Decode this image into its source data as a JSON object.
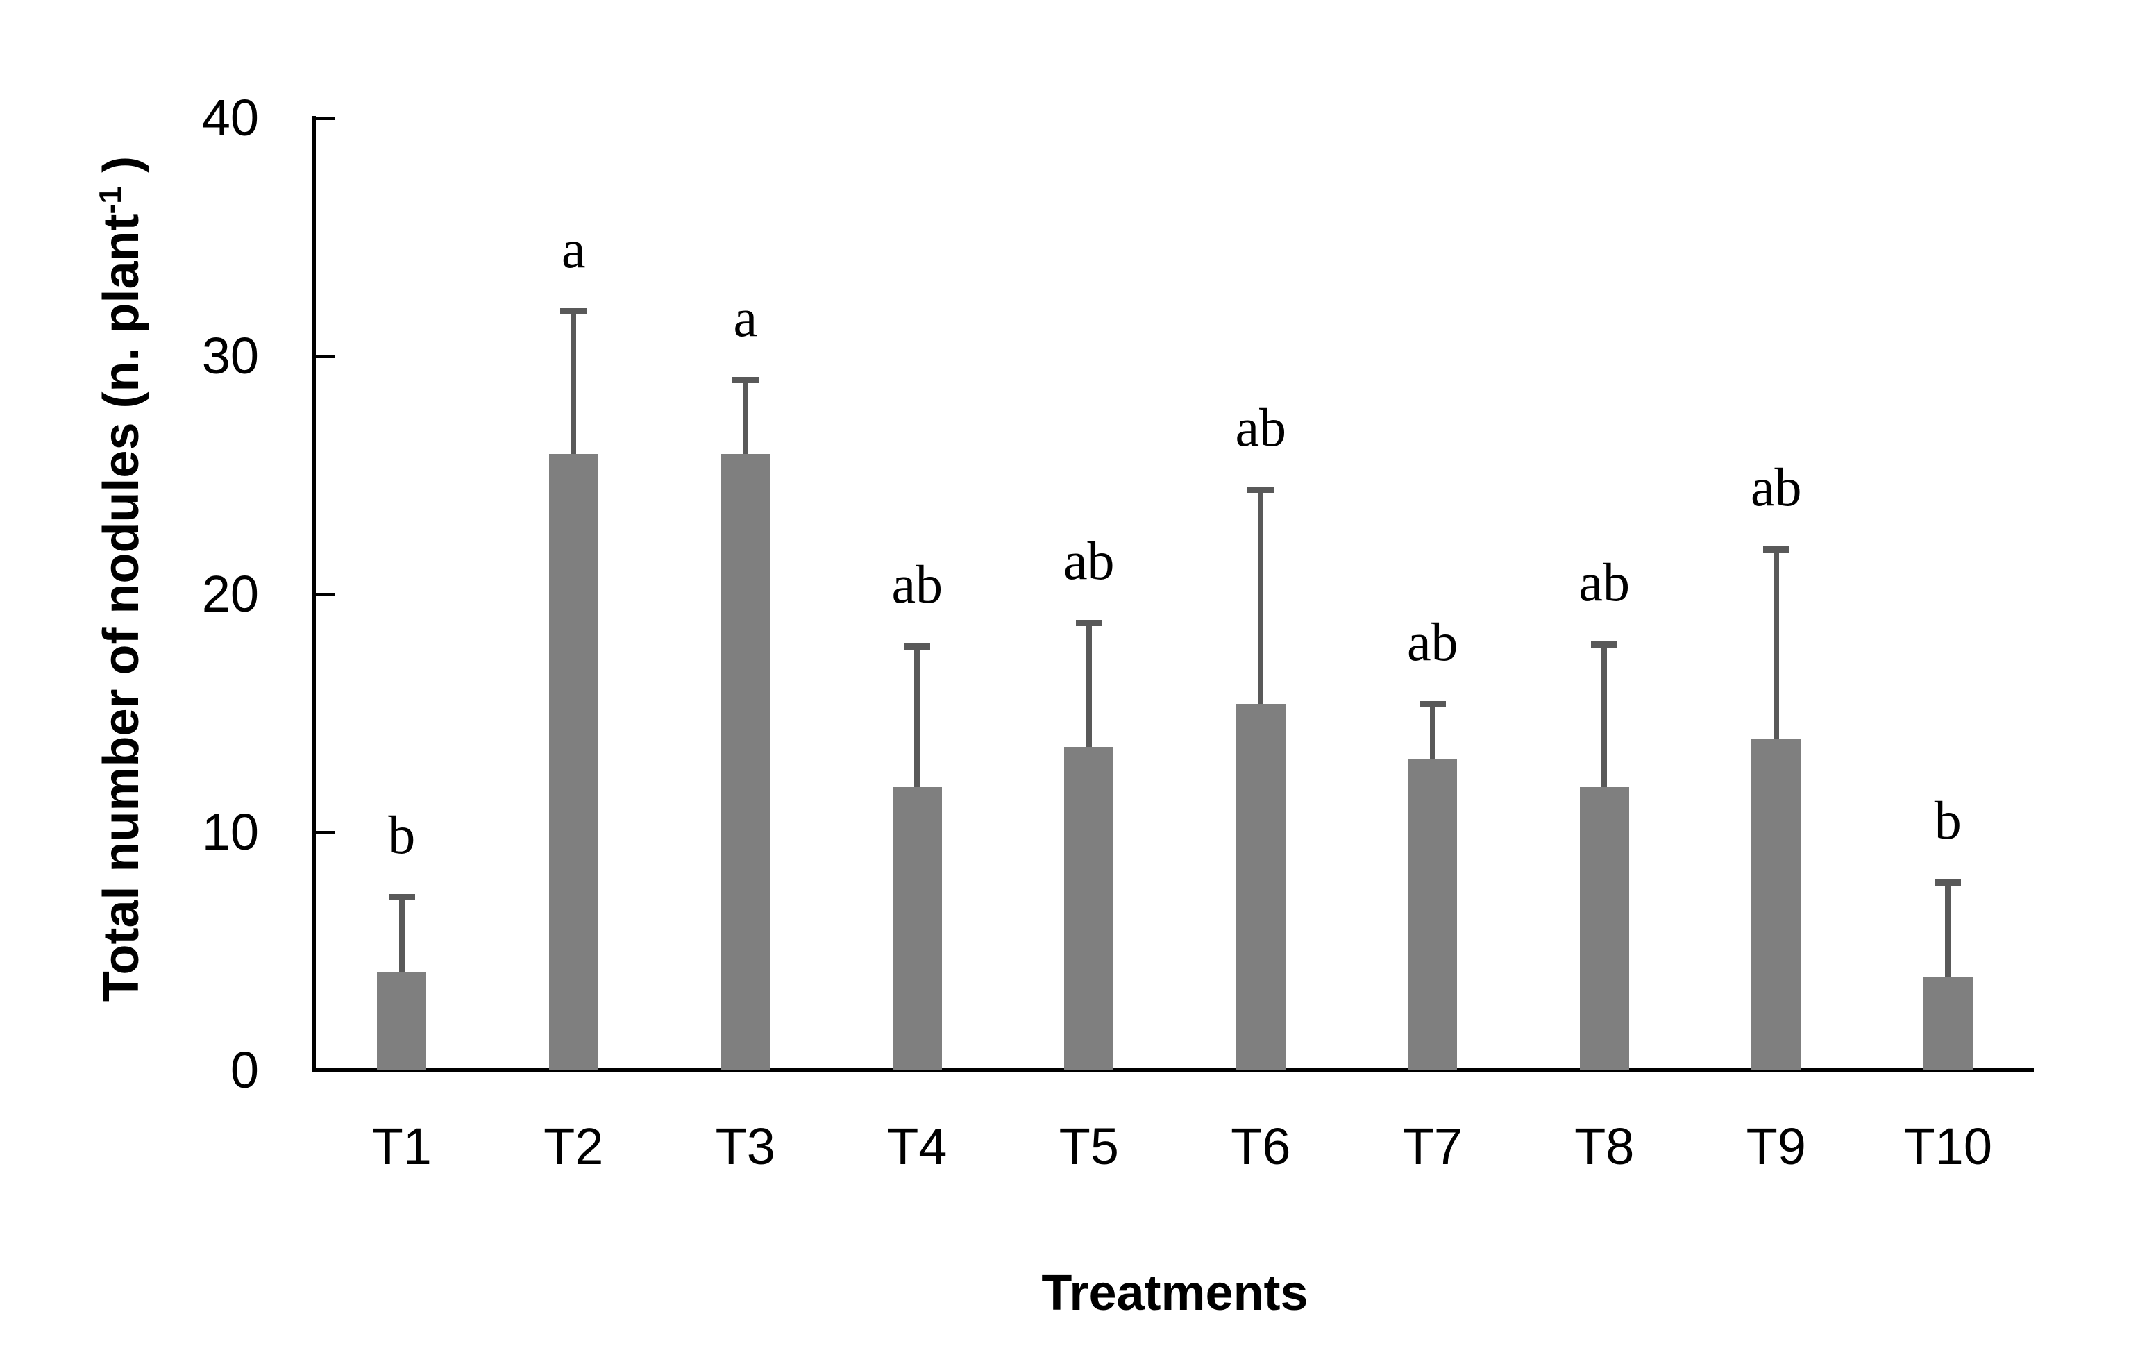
{
  "chart_data": {
    "type": "bar",
    "title": "",
    "xlabel": "Treatments",
    "ylabel_text": "Total number of nodules (n. plant",
    "ylabel_sup": "-1",
    "ylabel_close": " )",
    "categories": [
      "T1",
      "T2",
      "T3",
      "T4",
      "T5",
      "T6",
      "T7",
      "T8",
      "T9",
      "T10"
    ],
    "values": [
      4.1,
      25.9,
      25.9,
      11.9,
      13.6,
      15.4,
      13.1,
      11.9,
      13.9,
      3.9
    ],
    "error_upper": [
      3.2,
      6.0,
      3.1,
      5.9,
      5.2,
      9.0,
      2.3,
      6.0,
      8.0,
      4.0
    ],
    "error_bar_tops": [
      7.3,
      31.9,
      29.0,
      17.8,
      18.8,
      24.4,
      15.4,
      17.9,
      21.9,
      7.9
    ],
    "sig_letters": [
      "b",
      "a",
      "a",
      "ab",
      "ab",
      "ab",
      "ab",
      "ab",
      "ab",
      "b"
    ],
    "yticks": [
      0,
      10,
      20,
      30,
      40
    ],
    "ylim": [
      0,
      40
    ],
    "grid": false,
    "legend": false,
    "bar_color": "#7F7F7F",
    "error_bar_color": "#595959",
    "axis_color": "#000000",
    "text_color": "#000000"
  }
}
